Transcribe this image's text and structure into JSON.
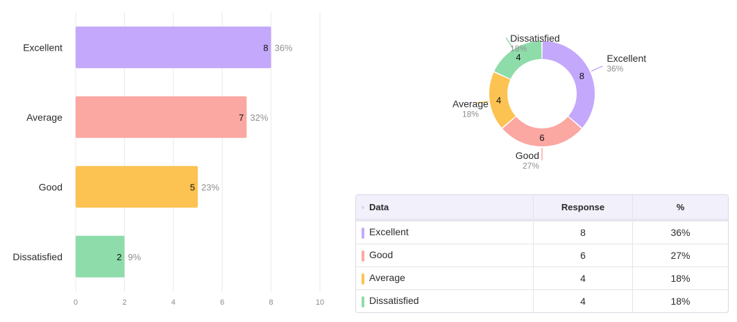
{
  "chart_data": [
    {
      "type": "bar",
      "orientation": "horizontal",
      "categories": [
        "Excellent",
        "Average",
        "Good",
        "Dissatisfied"
      ],
      "values": [
        8,
        7,
        5,
        2
      ],
      "percent_labels": [
        "36%",
        "32%",
        "23%",
        "9%"
      ],
      "colors": [
        "#c4a8fb",
        "#fba7a2",
        "#fcc252",
        "#8fdcab"
      ],
      "xlim": [
        0,
        10
      ],
      "xticks": [
        0,
        2,
        4,
        6,
        8,
        10
      ],
      "grid": true
    },
    {
      "type": "pie",
      "style": "donut",
      "labels": [
        "Excellent",
        "Good",
        "Average",
        "Dissatisfied"
      ],
      "values": [
        8,
        6,
        4,
        4
      ],
      "percent_labels": [
        "36%",
        "27%",
        "18%",
        "18%"
      ],
      "colors": [
        "#c4a8fb",
        "#fba7a2",
        "#fcc252",
        "#8fdcab"
      ]
    },
    {
      "type": "table",
      "headers": [
        "Data",
        "Response",
        "%"
      ],
      "rows": [
        {
          "label": "Excellent",
          "response": "8",
          "percent": "36%",
          "color": "#c4a8fb"
        },
        {
          "label": "Good",
          "response": "6",
          "percent": "27%",
          "color": "#fba7a2"
        },
        {
          "label": "Average",
          "response": "4",
          "percent": "18%",
          "color": "#fcc252"
        },
        {
          "label": "Dissatisfied",
          "response": "4",
          "percent": "18%",
          "color": "#8fdcab"
        }
      ]
    }
  ]
}
